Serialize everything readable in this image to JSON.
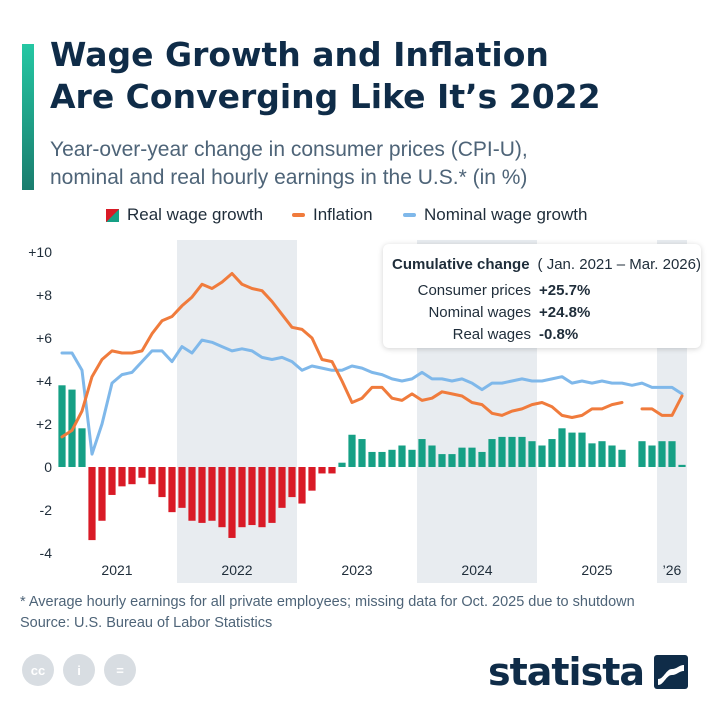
{
  "title_lines": [
    "Wage Growth and Inflation",
    "Are Converging Like It’s 2022"
  ],
  "subtitle_lines": [
    "Year-over-year change in consumer prices (CPI-U),",
    "nominal and real hourly earnings in the U.S.* (in %)"
  ],
  "colors": {
    "accent": "#1fa98f",
    "real_positive": "#16a085",
    "real_negative": "#d91a26",
    "inflation": "#f07b3c",
    "nominal": "#7fb8ea",
    "band": "#e8ecf0",
    "title": "#0f2c48"
  },
  "legend": {
    "real": "Real wage growth",
    "inflation": "Inflation",
    "nominal": "Nominal wage growth"
  },
  "callout": {
    "heading": "Cumulative change",
    "period": "( Jan. 2021 – Mar. 2026)",
    "rows": [
      {
        "label": "Consumer prices",
        "value": "+25.7%"
      },
      {
        "label": "Nominal wages",
        "value": "+24.8%"
      },
      {
        "label": "Real wages",
        "value": "-0.8%"
      }
    ]
  },
  "footnote_lines": [
    "* Average hourly earnings for all private employees; missing data for Oct. 2025 due to shutdown",
    "Source: U.S. Bureau of Labor Statistics"
  ],
  "license_icons": [
    "cc-icon",
    "attribution-icon",
    "no-derivatives-icon"
  ],
  "license_glyphs": [
    "cc",
    "i",
    "="
  ],
  "brand": "statista",
  "chart_data": {
    "type": "line+bar",
    "ylim": [
      -4,
      10
    ],
    "yticks": [
      -4,
      -2,
      0,
      2,
      4,
      6,
      8,
      10
    ],
    "ytick_labels": [
      "-4",
      "-2",
      "0",
      "+2",
      "+4",
      "+6",
      "+8",
      "+10"
    ],
    "x_start": "2021-01",
    "x_end": "2026-03",
    "xtick_labels": [
      "2021",
      "2022",
      "2023",
      "2024",
      "2025",
      "’26"
    ],
    "shaded_years": [
      "2022",
      "2024",
      "2026"
    ],
    "grid": false,
    "legend_position": "top",
    "months": [
      "2021-01",
      "2021-02",
      "2021-03",
      "2021-04",
      "2021-05",
      "2021-06",
      "2021-07",
      "2021-08",
      "2021-09",
      "2021-10",
      "2021-11",
      "2021-12",
      "2022-01",
      "2022-02",
      "2022-03",
      "2022-04",
      "2022-05",
      "2022-06",
      "2022-07",
      "2022-08",
      "2022-09",
      "2022-10",
      "2022-11",
      "2022-12",
      "2023-01",
      "2023-02",
      "2023-03",
      "2023-04",
      "2023-05",
      "2023-06",
      "2023-07",
      "2023-08",
      "2023-09",
      "2023-10",
      "2023-11",
      "2023-12",
      "2024-01",
      "2024-02",
      "2024-03",
      "2024-04",
      "2024-05",
      "2024-06",
      "2024-07",
      "2024-08",
      "2024-09",
      "2024-10",
      "2024-11",
      "2024-12",
      "2025-01",
      "2025-02",
      "2025-03",
      "2025-04",
      "2025-05",
      "2025-06",
      "2025-07",
      "2025-08",
      "2025-09",
      "2025-10",
      "2025-11",
      "2025-12",
      "2026-01",
      "2026-02",
      "2026-03"
    ],
    "series": [
      {
        "name": "Real wage growth",
        "type": "bar",
        "values": [
          3.8,
          3.6,
          1.8,
          -3.4,
          -2.5,
          -1.3,
          -0.9,
          -0.8,
          -0.5,
          -0.8,
          -1.4,
          -2.1,
          -1.9,
          -2.5,
          -2.6,
          -2.5,
          -2.8,
          -3.3,
          -2.8,
          -2.7,
          -2.8,
          -2.6,
          -1.9,
          -1.4,
          -1.7,
          -1.1,
          -0.3,
          -0.3,
          0.2,
          1.5,
          1.3,
          0.7,
          0.7,
          0.8,
          1.0,
          0.8,
          1.3,
          1.0,
          0.6,
          0.6,
          0.9,
          0.9,
          0.7,
          1.3,
          1.4,
          1.4,
          1.4,
          1.2,
          1.0,
          1.3,
          1.8,
          1.6,
          1.6,
          1.1,
          1.2,
          1.0,
          0.8,
          null,
          1.2,
          1.0,
          1.2,
          1.2,
          0.1
        ]
      },
      {
        "name": "Inflation",
        "type": "line",
        "values": [
          1.4,
          1.7,
          2.6,
          4.2,
          5.0,
          5.4,
          5.3,
          5.3,
          5.4,
          6.2,
          6.8,
          7.0,
          7.5,
          7.9,
          8.5,
          8.3,
          8.6,
          9.0,
          8.5,
          8.3,
          8.2,
          7.7,
          7.1,
          6.5,
          6.4,
          6.0,
          5.0,
          4.9,
          4.0,
          3.0,
          3.2,
          3.7,
          3.7,
          3.2,
          3.1,
          3.4,
          3.1,
          3.2,
          3.5,
          3.4,
          3.3,
          3.0,
          2.9,
          2.5,
          2.4,
          2.6,
          2.7,
          2.9,
          3.0,
          2.8,
          2.4,
          2.3,
          2.4,
          2.7,
          2.7,
          2.9,
          3.0,
          null,
          2.7,
          2.7,
          2.4,
          2.4,
          3.3
        ]
      },
      {
        "name": "Nominal wage growth",
        "type": "line",
        "values": [
          5.3,
          5.3,
          4.5,
          0.6,
          2.0,
          3.9,
          4.3,
          4.4,
          4.9,
          5.4,
          5.4,
          4.9,
          5.6,
          5.3,
          5.9,
          5.8,
          5.6,
          5.4,
          5.5,
          5.4,
          5.1,
          5.0,
          5.1,
          4.9,
          4.5,
          4.7,
          4.6,
          4.5,
          4.5,
          4.7,
          4.6,
          4.4,
          4.3,
          4.1,
          4.0,
          4.1,
          4.4,
          4.1,
          4.1,
          4.0,
          4.1,
          3.9,
          3.6,
          3.9,
          3.9,
          4.0,
          4.1,
          4.0,
          4.0,
          4.1,
          4.2,
          3.9,
          4.0,
          3.9,
          4.0,
          3.9,
          3.9,
          3.8,
          3.9,
          3.7,
          3.7,
          3.7,
          3.4
        ]
      }
    ]
  }
}
